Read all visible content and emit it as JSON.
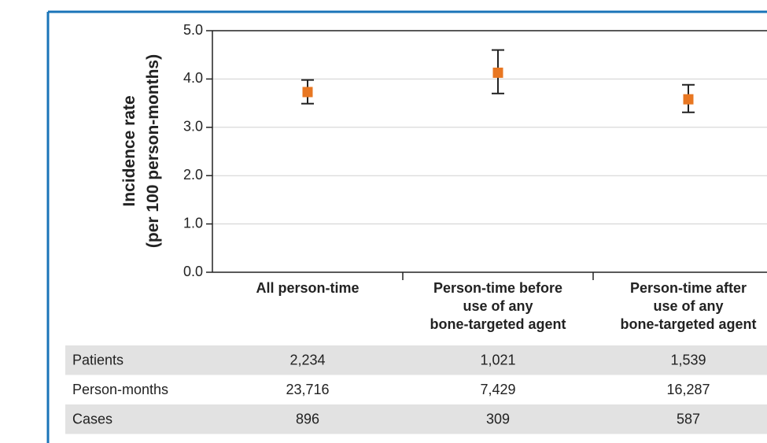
{
  "chart_data": {
    "type": "errorbar",
    "y_label": [
      "Incidence rate",
      "(per 100 person-months)"
    ],
    "categories": [
      [
        "All person-time"
      ],
      [
        "Person-time before",
        "use of any",
        "bone-targeted agent"
      ],
      [
        "Person-time after",
        "use of any",
        "bone-targeted agent"
      ]
    ],
    "values": [
      3.73,
      4.13,
      3.58
    ],
    "lower": [
      3.49,
      3.7,
      3.31
    ],
    "upper": [
      3.98,
      4.6,
      3.88
    ],
    "color": "#e87722",
    "ylim": [
      0,
      5
    ],
    "yticks": [
      {
        "value": 0,
        "label": "0.0"
      },
      {
        "value": 1,
        "label": "1.0"
      },
      {
        "value": 2,
        "label": "2.0"
      },
      {
        "value": 3,
        "label": "3.0"
      },
      {
        "value": 4,
        "label": "4.0"
      },
      {
        "value": 5,
        "label": "5.0"
      }
    ],
    "grid": true
  },
  "table": {
    "rows": [
      [
        "Patients",
        "2,234",
        "1,021",
        "1,539"
      ],
      [
        "Person-months",
        "23,716",
        "7,429",
        "16,287"
      ],
      [
        "Cases",
        "896",
        "309",
        "587"
      ]
    ]
  }
}
